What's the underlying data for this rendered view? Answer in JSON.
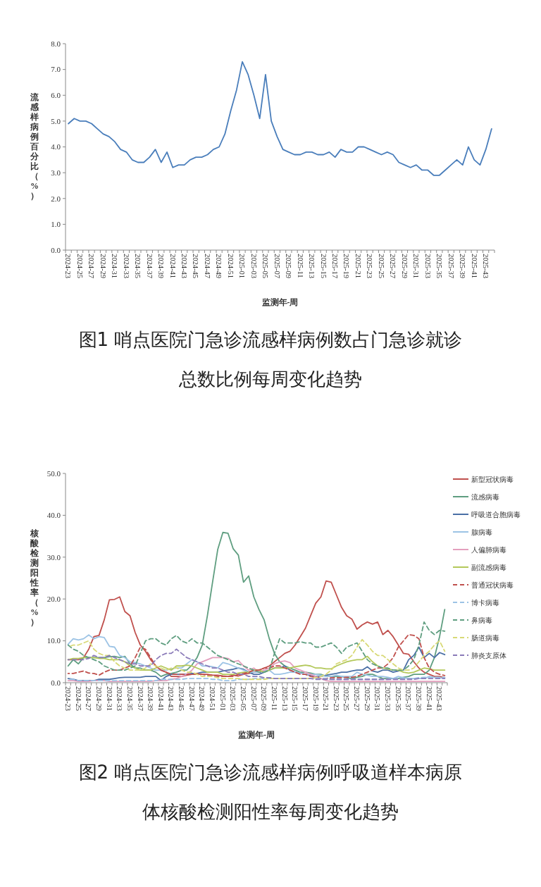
{
  "chart_data": [
    {
      "type": "line",
      "title": "图1 哨点医院门急诊流感样病例数占门急诊就诊总数比例每周变化趋势",
      "xlabel": "监测年-周",
      "ylabel": "流感样病例百分比（%）",
      "categories": [
        "2024-23",
        null,
        "2024-25",
        null,
        "2024-27",
        null,
        "2024-29",
        null,
        "2024-31",
        null,
        "2024-33",
        null,
        "2024-35",
        null,
        "2024-37",
        null,
        "2024-39",
        null,
        "2024-41",
        null,
        "2024-43",
        null,
        "2024-45",
        null,
        "2024-47",
        null,
        "2024-49",
        null,
        "2024-51",
        null,
        "2025-01",
        null,
        "2025-03",
        null,
        "2025-05",
        null,
        "2025-07",
        null,
        "2025-09",
        null,
        "2025-11",
        null,
        "2025-13",
        null,
        "2025-15",
        null,
        "2025-17",
        null,
        "2025-19",
        null,
        "2025-21",
        null,
        "2025-23",
        null,
        "2025-25",
        null,
        "2025-27",
        null,
        "2025-29",
        null,
        "2025-31",
        null,
        "2025-33",
        null,
        "2025-35",
        null,
        "2025-37",
        null,
        "2025-39",
        null,
        "2025-41",
        null,
        "2025-43",
        null
      ],
      "series": [
        {
          "color": "#4a7ebb",
          "values": [
            4.9,
            5.1,
            5.0,
            5.0,
            4.9,
            4.7,
            4.5,
            4.4,
            4.2,
            3.9,
            3.8,
            3.5,
            3.4,
            3.4,
            3.6,
            3.9,
            3.4,
            3.8,
            3.2,
            3.3,
            3.3,
            3.5,
            3.6,
            3.6,
            3.7,
            3.9,
            4.0,
            4.5,
            5.4,
            6.2,
            7.3,
            6.8,
            6.0,
            5.1,
            6.8,
            5.0,
            4.4,
            3.9,
            3.8,
            3.7,
            3.7,
            3.8,
            3.8,
            3.7,
            3.7,
            3.8,
            3.6,
            3.9,
            3.8,
            3.8,
            4.0,
            4.0,
            3.9,
            3.8,
            3.7,
            3.8,
            3.7,
            3.4,
            3.3,
            3.2,
            3.3,
            3.1,
            3.1,
            2.9,
            2.9,
            3.1,
            3.3,
            3.5,
            3.3,
            4.0,
            3.5,
            3.3,
            3.9,
            4.7
          ]
        }
      ],
      "ylim": [
        0,
        8
      ],
      "yticks": [
        {
          "value": 0,
          "label": "0.0"
        },
        {
          "value": 1,
          "label": "1.0"
        },
        {
          "value": 2,
          "label": "2.0"
        },
        {
          "value": 3,
          "label": "3.0"
        },
        {
          "value": 4,
          "label": "4.0"
        },
        {
          "value": 5,
          "label": "5.0"
        },
        {
          "value": 6,
          "label": "6.0"
        },
        {
          "value": 7,
          "label": "7.0"
        },
        {
          "value": 8,
          "label": "8.0"
        }
      ],
      "grid": false,
      "legend": false,
      "marker": "none",
      "line_style": "solid"
    },
    {
      "type": "line",
      "title": "图2 哨点医院门急诊流感样病例呼吸道样本病原体核酸检测阳性率每周变化趋势",
      "xlabel": "监测年-周",
      "ylabel": "核酸检测阳性率（%）",
      "categories": [
        "2024-23",
        null,
        "2024-25",
        null,
        "2024-27",
        null,
        "2024-29",
        null,
        "2024-31",
        null,
        "2024-33",
        null,
        "2024-35",
        null,
        "2024-37",
        null,
        "2024-39",
        null,
        "2024-41",
        null,
        "2024-43",
        null,
        "2024-45",
        null,
        "2024-47",
        null,
        "2024-49",
        null,
        "2024-51",
        null,
        "2025-01",
        null,
        "2025-03",
        null,
        "2025-05",
        null,
        "2025-07",
        null,
        "2025-09",
        null,
        "2025-11",
        null,
        "2025-13",
        null,
        "2025-15",
        null,
        "2025-17",
        null,
        "2025-19",
        null,
        "2025-21",
        null,
        "2025-23",
        null,
        "2025-25",
        null,
        "2025-27",
        null,
        "2025-29",
        null,
        "2025-31",
        null,
        "2025-33",
        null,
        "2025-35",
        null,
        "2025-37",
        null,
        "2025-39",
        null,
        "2025-41",
        null,
        "2025-43",
        null
      ],
      "series": [
        {
          "name": "新型冠状病毒",
          "color": "#c0504d",
          "line_style": "solid",
          "values": [
            5.5,
            5.5,
            5.5,
            6,
            8,
            11,
            11.3,
            15,
            19.8,
            19.9,
            20.5,
            17,
            16,
            12,
            9,
            7.5,
            5.5,
            4,
            3,
            2.5,
            1.5,
            1.5,
            1.5,
            1.8,
            2,
            2,
            2,
            2,
            1.8,
            1.8,
            1.6,
            1.5,
            1.8,
            1.6,
            2,
            2.2,
            2.5,
            3,
            3.5,
            4,
            5,
            6,
            7,
            7.5,
            9,
            11,
            13,
            16,
            19,
            20.5,
            24.3,
            24,
            21,
            18,
            16,
            15.2,
            12.8,
            13.8,
            14.5,
            14,
            14.5,
            11.5,
            12.5,
            11,
            9,
            7,
            6.8,
            5,
            3.5,
            2.5,
            2,
            1.5,
            1.5,
            1.2
          ]
        },
        {
          "name": "流感病毒",
          "color": "#5f9e80",
          "line_style": "solid",
          "values": [
            4,
            5.5,
            4.5,
            6,
            6,
            6,
            6,
            6,
            6.2,
            6.3,
            6,
            6.3,
            4.5,
            3.5,
            3.5,
            3,
            3,
            2.5,
            1.5,
            2,
            2.2,
            2.5,
            3,
            3,
            4.2,
            6,
            9,
            16,
            24,
            31.8,
            35.9,
            35.7,
            32,
            30.5,
            24,
            25.5,
            20.5,
            17.5,
            15,
            10.5,
            7,
            5,
            4,
            3.5,
            3,
            2.5,
            2.5,
            2.3,
            2,
            2,
            1.5,
            1.5,
            1.5,
            1.5,
            1.2,
            1,
            1.3,
            1.5,
            2,
            2,
            1.5,
            1,
            1,
            1,
            1,
            1.3,
            1.5,
            2,
            2,
            2,
            3,
            6,
            11,
            17.5
          ]
        },
        {
          "name": "呼吸道合胞病毒",
          "color": "#4a6fa5",
          "line_style": "solid",
          "values": [
            1,
            0.8,
            0.5,
            0.5,
            0.5,
            0.5,
            0.8,
            0.8,
            0.8,
            1,
            1.2,
            1.3,
            1.3,
            1.3,
            1.3,
            1.5,
            1.5,
            1.5,
            0.5,
            1.5,
            2,
            2,
            2,
            2,
            2.2,
            2.2,
            2.5,
            2.5,
            2.5,
            2.5,
            2.8,
            3,
            3.2,
            3.5,
            3.2,
            2.5,
            2,
            2,
            2.5,
            3,
            3.5,
            3.5,
            4,
            3,
            2.5,
            2.3,
            2,
            1.8,
            1.5,
            1.5,
            1.8,
            2,
            2.2,
            2.5,
            2.5,
            2.8,
            3,
            3,
            3.8,
            2.8,
            2.5,
            3,
            3,
            2.5,
            2.8,
            3,
            5.5,
            6.5,
            8.5,
            6,
            7,
            6,
            7.2,
            6.7
          ]
        },
        {
          "name": "腺病毒",
          "color": "#9cc3e5",
          "line_style": "solid",
          "values": [
            9.2,
            10.5,
            10.2,
            10.5,
            11.4,
            10.5,
            11,
            10.8,
            8.7,
            8.5,
            6.5,
            6,
            5,
            4.8,
            4.5,
            4,
            3.5,
            3,
            3,
            3,
            3.3,
            3.5,
            3.5,
            4.5,
            5.5,
            5,
            4,
            4,
            3.8,
            3.5,
            4.8,
            4.5,
            4,
            3.5,
            3,
            2.5,
            2.5,
            2.5,
            2.8,
            3,
            2,
            2,
            2.2,
            2.5,
            2.5,
            2.3,
            2,
            2,
            2,
            1.8,
            1.5,
            1.5,
            1.8,
            1.5,
            1.5,
            1.5,
            2.5,
            2,
            1.8,
            1.5,
            1.5,
            1.5,
            1.3,
            1,
            1.5,
            1.2,
            1,
            1,
            1,
            1,
            1.5,
            1.3,
            1.2,
            1
          ]
        },
        {
          "name": "人偏肺病毒",
          "color": "#e49fbd",
          "line_style": "solid",
          "values": [
            0.5,
            0.5,
            0.3,
            0.3,
            0.3,
            0.5,
            0.5,
            0.5,
            0.3,
            0.3,
            0.3,
            0.3,
            0.3,
            0.3,
            0.3,
            0.3,
            0.3,
            0.5,
            0.5,
            0.5,
            0.8,
            1,
            1.5,
            2,
            3,
            4.5,
            5,
            5.5,
            6,
            6,
            6,
            5.8,
            5,
            5.3,
            4,
            3,
            3.5,
            2.5,
            3,
            3.5,
            4.5,
            5,
            5.2,
            4.8,
            3.5,
            3,
            2.5,
            2,
            1.5,
            1,
            0.5,
            0.3,
            0.3,
            0.3,
            0.3,
            0.3,
            0.3,
            0.3,
            0.3,
            0.3,
            0.3,
            0.3,
            0.3,
            0.3,
            0.3,
            0.3,
            0.3,
            0.3,
            0.3,
            0.3,
            0.3,
            0.3,
            0.3,
            0.3
          ]
        },
        {
          "name": "副流感病毒",
          "color": "#b3c85a",
          "line_style": "solid",
          "values": [
            5.5,
            5.8,
            5.8,
            6,
            6,
            6,
            5.8,
            5.8,
            5.5,
            5.5,
            5.5,
            5,
            4,
            3.5,
            3,
            3,
            3,
            3.5,
            4,
            3.5,
            3,
            4,
            4,
            4.2,
            4,
            3.5,
            3,
            2.5,
            2.5,
            2.5,
            2,
            2,
            2,
            2.3,
            2.5,
            2.5,
            3,
            3,
            2.5,
            3,
            3.5,
            3.5,
            3.5,
            3.5,
            3.8,
            4,
            4.2,
            4,
            3.5,
            3.5,
            3.3,
            3.3,
            4,
            4.5,
            5,
            5.3,
            5.5,
            5.5,
            6.3,
            5,
            4,
            3.5,
            3.3,
            3,
            3,
            2.5,
            2.3,
            2.5,
            3,
            3.5,
            3.3,
            3,
            3,
            3
          ]
        },
        {
          "name": "普通冠状病毒",
          "color": "#c0504d",
          "line_style": "dashed",
          "values": [
            2.2,
            2.2,
            2.5,
            2.8,
            2.3,
            2.2,
            1.8,
            2.5,
            3,
            3,
            3,
            3.5,
            4,
            6,
            8.5,
            8,
            6,
            4,
            3,
            2.5,
            2,
            2,
            2,
            2,
            2,
            2.2,
            2,
            1.8,
            1.8,
            1.5,
            1.5,
            1.5,
            1.5,
            2,
            2.2,
            2.5,
            3,
            3,
            3.5,
            3.5,
            4,
            4,
            3.5,
            3,
            2.5,
            2,
            2,
            1.5,
            1.3,
            1,
            1,
            1.2,
            1.2,
            1.2,
            1.3,
            1.3,
            1.5,
            2,
            2.5,
            3,
            3.5,
            3.5,
            4.5,
            6,
            8.5,
            10,
            11.5,
            11.3,
            10.5,
            6,
            3.5,
            2.5,
            2,
            1.7
          ]
        },
        {
          "name": "博卡病毒",
          "color": "#9cc3e5",
          "line_style": "dashed",
          "values": [
            0.8,
            0.8,
            0.5,
            0.5,
            0.5,
            0.5,
            0.5,
            0.5,
            0.5,
            0.5,
            0.5,
            0.5,
            0.5,
            0.5,
            0.5,
            0.5,
            0.5,
            0.5,
            0.8,
            0.8,
            0.8,
            0.8,
            0.8,
            1,
            1,
            1,
            1,
            1,
            0.8,
            0.8,
            0.5,
            0.5,
            0.5,
            0.8,
            0.8,
            0.8,
            1,
            1,
            1,
            1,
            1,
            1,
            1,
            1,
            1,
            1,
            1,
            1,
            1,
            1,
            1,
            0.8,
            0.8,
            0.8,
            0.8,
            0.8,
            0.8,
            0.8,
            0.8,
            0.8,
            0.8,
            0.8,
            0.8,
            1,
            1,
            1,
            1,
            1,
            1.2,
            1.3,
            1.3,
            1.3,
            1.3,
            1.3
          ]
        },
        {
          "name": "鼻病毒",
          "color": "#5f9e80",
          "line_style": "dashed",
          "values": [
            9,
            8,
            7.5,
            6.5,
            6,
            5.5,
            5,
            4,
            3.5,
            3,
            3,
            3,
            3.5,
            4,
            7,
            10,
            10.5,
            10.5,
            9.5,
            9,
            10.5,
            11.3,
            10,
            9.5,
            10.5,
            9.5,
            9.5,
            8.5,
            7.5,
            6.5,
            6,
            5.5,
            5,
            4.5,
            4,
            3.5,
            3,
            2.5,
            2.5,
            3,
            7,
            10.5,
            9.5,
            9.5,
            9.5,
            9.8,
            9.5,
            9.5,
            8.5,
            8.5,
            9,
            9.5,
            8.5,
            7,
            8.5,
            9,
            9.5,
            7.5,
            5.5,
            4.5,
            4,
            3.5,
            3.5,
            3,
            3,
            3,
            4,
            5.5,
            9,
            14.5,
            12.5,
            11.5,
            12.5,
            12.3
          ]
        },
        {
          "name": "肠道病毒",
          "color": "#d8d976",
          "line_style": "dashed",
          "values": [
            8.5,
            9,
            9,
            9.5,
            10,
            8,
            7,
            6.5,
            6.5,
            5,
            4,
            3.5,
            3,
            3,
            3,
            3.5,
            4.5,
            4,
            3.5,
            3,
            3.5,
            3.5,
            3,
            2.5,
            2.5,
            2,
            1.5,
            1.5,
            1.5,
            1.2,
            1,
            1,
            1,
            1,
            0.8,
            0.8,
            0.8,
            0.8,
            0.8,
            1,
            1,
            1,
            1,
            1,
            1,
            1,
            1,
            1,
            1.2,
            1.5,
            2,
            3,
            4.5,
            5,
            5.5,
            6.5,
            8.5,
            10.3,
            9,
            7.5,
            6.5,
            6.5,
            5.5,
            4.5,
            3.5,
            3,
            3,
            3.5,
            5,
            6.5,
            7.5,
            9,
            10,
            7.5
          ]
        },
        {
          "name": "肺炎支原体",
          "color": "#8a7ab8",
          "line_style": "dashed",
          "values": [
            5.5,
            5.5,
            5.5,
            5.5,
            5.8,
            6.5,
            6,
            6,
            6.5,
            6,
            5.5,
            5,
            4.5,
            4.5,
            4,
            4,
            4,
            5.5,
            6.5,
            7,
            7,
            8,
            7,
            6,
            5.5,
            5,
            4.5,
            4,
            3.5,
            3.5,
            3,
            2.5,
            2.5,
            2,
            2,
            1.5,
            1.5,
            1.5,
            1.2,
            1.2,
            1,
            1,
            1,
            1,
            1,
            1,
            1,
            1,
            0.8,
            0.8,
            0.8,
            0.8,
            0.8,
            0.8,
            0.8,
            0.8,
            0.8,
            0.8,
            0.8,
            0.8,
            0.8,
            0.8,
            0.8,
            0.8,
            0.8,
            0.8,
            0.8,
            0.8,
            1,
            1,
            1,
            1,
            1,
            1
          ]
        }
      ],
      "ylim": [
        0,
        50
      ],
      "yticks": [
        {
          "value": 0,
          "label": "0.0"
        },
        {
          "value": 10,
          "label": "10.0"
        },
        {
          "value": 20,
          "label": "20.0"
        },
        {
          "value": 30,
          "label": "30.0"
        },
        {
          "value": 40,
          "label": "40.0"
        },
        {
          "value": 50,
          "label": "50.0"
        }
      ],
      "grid": false,
      "legend": "right",
      "marker": "none"
    }
  ]
}
